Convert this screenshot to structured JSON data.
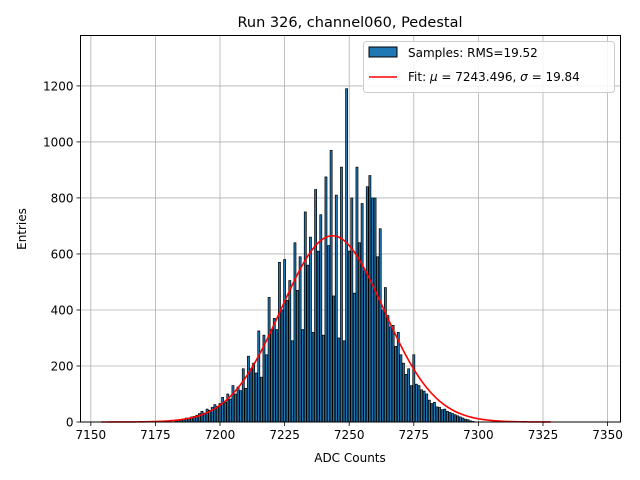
{
  "chart_data": {
    "type": "bar",
    "title": "Run 326, channel060, Pedestal",
    "xlabel": "ADC Counts",
    "ylabel": "Entries",
    "xlim": [
      7146,
      7355
    ],
    "ylim": [
      0,
      1380
    ],
    "xticks": [
      7150,
      7175,
      7200,
      7225,
      7250,
      7275,
      7300,
      7325,
      7350
    ],
    "yticks": [
      0,
      200,
      400,
      600,
      800,
      1000,
      1200
    ],
    "grid": true,
    "legend_position": "top-right",
    "bar_color": "#1f77b4",
    "fit_color": "#ff0000",
    "series": [
      {
        "name": "Samples: RMS=19.52",
        "type": "histogram",
        "bin_width": 1,
        "points": [
          [
            7183,
            4
          ],
          [
            7184,
            6
          ],
          [
            7185,
            8
          ],
          [
            7186,
            10
          ],
          [
            7187,
            14
          ],
          [
            7188,
            12
          ],
          [
            7189,
            18
          ],
          [
            7190,
            20
          ],
          [
            7191,
            24
          ],
          [
            7192,
            30
          ],
          [
            7193,
            38
          ],
          [
            7194,
            32
          ],
          [
            7195,
            46
          ],
          [
            7196,
            42
          ],
          [
            7197,
            52
          ],
          [
            7198,
            62
          ],
          [
            7199,
            56
          ],
          [
            7200,
            66
          ],
          [
            7201,
            88
          ],
          [
            7202,
            70
          ],
          [
            7203,
            100
          ],
          [
            7204,
            82
          ],
          [
            7205,
            130
          ],
          [
            7206,
            100
          ],
          [
            7207,
            125
          ],
          [
            7208,
            112
          ],
          [
            7209,
            190
          ],
          [
            7210,
            120
          ],
          [
            7211,
            235
          ],
          [
            7212,
            190
          ],
          [
            7213,
            210
          ],
          [
            7214,
            175
          ],
          [
            7215,
            325
          ],
          [
            7216,
            160
          ],
          [
            7217,
            310
          ],
          [
            7218,
            240
          ],
          [
            7219,
            445
          ],
          [
            7220,
            330
          ],
          [
            7221,
            370
          ],
          [
            7222,
            330
          ],
          [
            7223,
            570
          ],
          [
            7224,
            400
          ],
          [
            7225,
            580
          ],
          [
            7226,
            435
          ],
          [
            7227,
            505
          ],
          [
            7228,
            290
          ],
          [
            7229,
            640
          ],
          [
            7230,
            470
          ],
          [
            7231,
            590
          ],
          [
            7232,
            330
          ],
          [
            7233,
            750
          ],
          [
            7234,
            560
          ],
          [
            7235,
            660
          ],
          [
            7236,
            320
          ],
          [
            7237,
            830
          ],
          [
            7238,
            610
          ],
          [
            7239,
            740
          ],
          [
            7240,
            310
          ],
          [
            7241,
            875
          ],
          [
            7242,
            630
          ],
          [
            7243,
            970
          ],
          [
            7244,
            450
          ],
          [
            7245,
            810
          ],
          [
            7246,
            300
          ],
          [
            7247,
            910
          ],
          [
            7248,
            290
          ],
          [
            7249,
            1190
          ],
          [
            7250,
            610
          ],
          [
            7251,
            800
          ],
          [
            7252,
            460
          ],
          [
            7253,
            910
          ],
          [
            7254,
            640
          ],
          [
            7255,
            780
          ],
          [
            7256,
            540
          ],
          [
            7257,
            840
          ],
          [
            7258,
            880
          ],
          [
            7259,
            800
          ],
          [
            7260,
            800
          ],
          [
            7261,
            590
          ],
          [
            7262,
            690
          ],
          [
            7263,
            400
          ],
          [
            7264,
            480
          ],
          [
            7265,
            380
          ],
          [
            7266,
            340
          ],
          [
            7267,
            345
          ],
          [
            7268,
            270
          ],
          [
            7269,
            320
          ],
          [
            7270,
            240
          ],
          [
            7271,
            210
          ],
          [
            7272,
            170
          ],
          [
            7273,
            190
          ],
          [
            7274,
            130
          ],
          [
            7275,
            240
          ],
          [
            7276,
            135
          ],
          [
            7277,
            130
          ],
          [
            7278,
            115
          ],
          [
            7279,
            110
          ],
          [
            7280,
            100
          ],
          [
            7281,
            78
          ],
          [
            7282,
            66
          ],
          [
            7283,
            70
          ],
          [
            7284,
            54
          ],
          [
            7285,
            52
          ],
          [
            7286,
            44
          ],
          [
            7287,
            46
          ],
          [
            7288,
            38
          ],
          [
            7289,
            34
          ],
          [
            7290,
            30
          ],
          [
            7291,
            26
          ],
          [
            7292,
            22
          ],
          [
            7293,
            18
          ],
          [
            7294,
            14
          ],
          [
            7295,
            10
          ],
          [
            7296,
            8
          ],
          [
            7297,
            4
          ],
          [
            7298,
            2
          ]
        ]
      },
      {
        "name": "Fit: μ = 7243.496, σ = 19.84",
        "type": "gaussian_fit",
        "mu": 7243.496,
        "sigma": 19.84,
        "peak": 665,
        "x_range": [
          7154,
          7328
        ]
      }
    ],
    "legend": {
      "samples_label": "Samples: RMS=19.52",
      "fit_label_prefix": "Fit: ",
      "fit_mu_symbol": "μ",
      "fit_mu_text": " = 7243.496, ",
      "fit_sigma_symbol": "σ",
      "fit_sigma_text": " = 19.84"
    }
  }
}
